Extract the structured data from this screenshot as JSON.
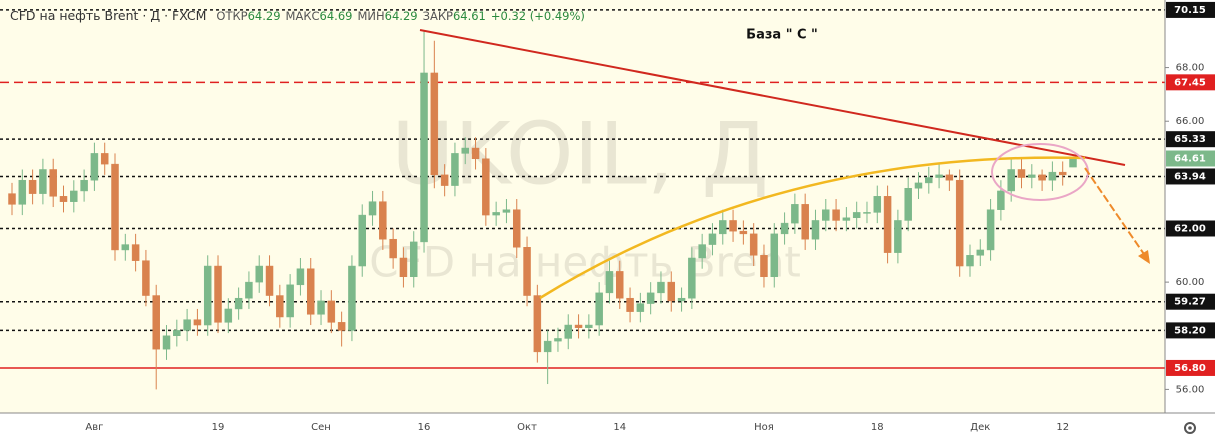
{
  "chart_data": {
    "type": "candlestick",
    "title": "CFD на нефть Brent · Д · FXCM",
    "ohlc_labels": [
      "ОТКР",
      "МАКС",
      "МИН",
      "ЗАКР"
    ],
    "change": "+0.32 (+0.49%)",
    "annotation": "База  \" С \"",
    "watermark": {
      "symbol": "UKOIL, Д",
      "name": "CFD на нефть Brent"
    },
    "up_color": "#7cb88a",
    "down_color": "#d9824e",
    "ylim": [
      55.12,
      70.52
    ],
    "yticks": [
      {
        "value": 68,
        "label": "68.00"
      },
      {
        "value": 66,
        "label": "66.00"
      },
      {
        "value": 60,
        "label": "60.00"
      },
      {
        "value": 56,
        "label": "56.00"
      }
    ],
    "levels": [
      {
        "price": 70.15,
        "color": "#111111",
        "style": "dotted"
      },
      {
        "price": 67.45,
        "color": "#e02020",
        "style": "dashed"
      },
      {
        "price": 65.33,
        "color": "#111111",
        "style": "dotted"
      },
      {
        "price": 63.94,
        "color": "#111111",
        "style": "dotted"
      },
      {
        "price": {
          "value": 62,
          "label": "62.00"
        },
        "color": "#111111",
        "style": "dotted"
      },
      {
        "price": 59.27,
        "color": "#111111",
        "style": "dotted"
      },
      {
        "price": {
          "value": 58.2,
          "label": "58.20"
        },
        "color": "#111111",
        "style": "dotted"
      },
      {
        "price": {
          "value": 56.8,
          "label": "56.80"
        },
        "color": "#e02020",
        "style": "solid"
      }
    ],
    "categories": [
      null,
      null,
      null,
      null,
      null,
      null,
      null,
      null,
      "Авг",
      null,
      null,
      null,
      null,
      null,
      null,
      null,
      null,
      null,
      null,
      null,
      "19",
      null,
      null,
      null,
      null,
      null,
      null,
      null,
      null,
      null,
      "Сен",
      null,
      null,
      null,
      null,
      null,
      null,
      null,
      null,
      null,
      "16",
      null,
      null,
      null,
      null,
      null,
      null,
      null,
      null,
      null,
      "Окт",
      null,
      null,
      null,
      null,
      null,
      null,
      null,
      null,
      "14",
      null,
      null,
      null,
      null,
      null,
      null,
      null,
      null,
      null,
      null,
      null,
      null,
      null,
      "Ноя",
      null,
      null,
      null,
      null,
      null,
      null,
      null,
      null,
      null,
      null,
      "18",
      null,
      null,
      null,
      null,
      null,
      null,
      null,
      null,
      null,
      "Дек",
      null,
      null,
      null,
      null,
      null,
      null,
      null,
      "12",
      null
    ],
    "open": [
      63.3,
      62.9,
      63.8,
      63.3,
      64.2,
      63.2,
      63.0,
      63.4,
      63.8,
      64.8,
      64.4,
      61.2,
      61.4,
      60.8,
      59.5,
      57.5,
      58.0,
      58.2,
      58.6,
      58.4,
      60.6,
      58.5,
      59.0,
      59.4,
      60.0,
      60.6,
      59.5,
      58.7,
      59.9,
      60.5,
      58.8,
      59.3,
      58.5,
      58.2,
      60.6,
      62.5,
      63.0,
      61.6,
      60.9,
      60.2,
      61.5,
      67.8,
      64.0,
      63.6,
      64.8,
      65.0,
      64.6,
      62.5,
      62.6,
      62.7,
      61.3,
      59.5,
      57.4,
      57.8,
      57.9,
      58.4,
      58.3,
      58.4,
      59.6,
      60.4,
      59.4,
      58.9,
      59.2,
      59.6,
      60.0,
      59.3,
      59.4,
      60.9,
      61.4,
      61.8,
      62.3,
      61.9,
      61.8,
      61.0,
      60.2,
      61.8,
      62.2,
      62.9,
      61.6,
      62.3,
      62.7,
      62.3,
      62.4,
      62.6,
      62.6,
      63.2,
      61.1,
      62.3,
      63.5,
      63.7,
      63.9,
      64.0,
      63.8,
      60.6,
      61.0,
      61.2,
      62.7,
      63.4,
      64.2,
      63.9,
      64.0,
      63.8,
      64.1,
      64.29
    ],
    "high": [
      63.7,
      64.2,
      64.2,
      64.6,
      64.6,
      63.6,
      63.8,
      64.2,
      65.2,
      65.2,
      64.8,
      61.8,
      61.8,
      61.2,
      59.9,
      58.4,
      58.6,
      59.0,
      59.0,
      61.0,
      61.0,
      59.4,
      59.8,
      60.4,
      61.0,
      61.0,
      59.9,
      60.3,
      60.9,
      60.9,
      59.7,
      59.7,
      58.9,
      61.0,
      62.9,
      63.4,
      63.4,
      62.0,
      61.3,
      61.9,
      69.4,
      69.0,
      64.4,
      65.2,
      65.4,
      65.4,
      65.0,
      63.0,
      63.1,
      63.1,
      61.7,
      59.9,
      58.2,
      58.3,
      58.8,
      58.8,
      58.8,
      60.0,
      60.8,
      60.8,
      59.8,
      59.6,
      60.0,
      60.4,
      60.4,
      59.8,
      61.3,
      61.8,
      62.2,
      62.7,
      62.7,
      62.3,
      62.2,
      61.4,
      62.2,
      62.6,
      63.3,
      63.3,
      62.7,
      63.1,
      63.1,
      62.8,
      63.0,
      63.0,
      63.6,
      63.6,
      62.7,
      63.9,
      64.1,
      64.3,
      64.4,
      64.2,
      64.2,
      61.4,
      61.6,
      63.1,
      63.8,
      64.6,
      64.6,
      64.4,
      64.2,
      64.5,
      64.5,
      64.69
    ],
    "low": [
      62.5,
      62.5,
      62.9,
      62.9,
      62.8,
      62.6,
      62.6,
      63.0,
      63.4,
      64.0,
      60.8,
      60.8,
      60.4,
      59.1,
      56.0,
      57.1,
      57.6,
      57.8,
      58.0,
      58.0,
      58.1,
      58.1,
      58.6,
      59.0,
      59.6,
      59.1,
      58.3,
      58.3,
      59.5,
      58.4,
      58.4,
      58.1,
      57.6,
      57.8,
      60.2,
      62.1,
      61.2,
      60.5,
      59.8,
      59.8,
      61.1,
      63.5,
      63.2,
      63.2,
      64.4,
      64.2,
      62.1,
      62.1,
      62.2,
      60.9,
      59.1,
      57.0,
      56.2,
      57.4,
      57.5,
      57.9,
      57.9,
      58.0,
      59.2,
      59.0,
      58.5,
      58.5,
      58.8,
      59.2,
      58.9,
      58.9,
      59.0,
      60.5,
      61.0,
      61.4,
      61.5,
      61.4,
      60.6,
      59.8,
      59.8,
      61.4,
      61.8,
      61.2,
      61.2,
      61.9,
      61.9,
      61.9,
      62.0,
      62.2,
      62.2,
      60.7,
      60.7,
      61.9,
      63.1,
      63.3,
      63.5,
      63.4,
      60.2,
      60.2,
      60.6,
      60.8,
      62.3,
      63.0,
      63.5,
      63.5,
      63.4,
      63.4,
      63.6,
      64.29
    ],
    "close": [
      62.9,
      63.8,
      63.3,
      64.2,
      63.2,
      63.0,
      63.4,
      63.8,
      64.8,
      64.4,
      61.2,
      61.4,
      60.8,
      59.5,
      57.5,
      58.0,
      58.2,
      58.6,
      58.4,
      60.6,
      58.5,
      59.0,
      59.4,
      60.0,
      60.6,
      59.5,
      58.7,
      59.9,
      60.5,
      58.8,
      59.3,
      58.5,
      58.2,
      60.6,
      62.5,
      63.0,
      61.6,
      60.9,
      60.2,
      61.5,
      67.8,
      64.0,
      63.6,
      64.8,
      65.0,
      64.6,
      62.5,
      62.6,
      62.7,
      61.3,
      59.5,
      57.4,
      57.8,
      57.9,
      58.4,
      58.3,
      58.4,
      59.6,
      60.4,
      59.4,
      58.9,
      59.2,
      59.6,
      60.0,
      59.3,
      59.4,
      60.9,
      61.4,
      61.8,
      62.3,
      61.9,
      61.8,
      61.0,
      60.2,
      61.8,
      62.2,
      62.9,
      61.6,
      62.3,
      62.7,
      62.3,
      62.4,
      62.6,
      62.6,
      63.2,
      61.1,
      62.3,
      63.5,
      63.7,
      63.9,
      64.0,
      63.8,
      60.6,
      61.0,
      61.2,
      62.7,
      63.4,
      64.2,
      63.9,
      64.0,
      63.8,
      64.1,
      64.0,
      64.61
    ]
  }
}
